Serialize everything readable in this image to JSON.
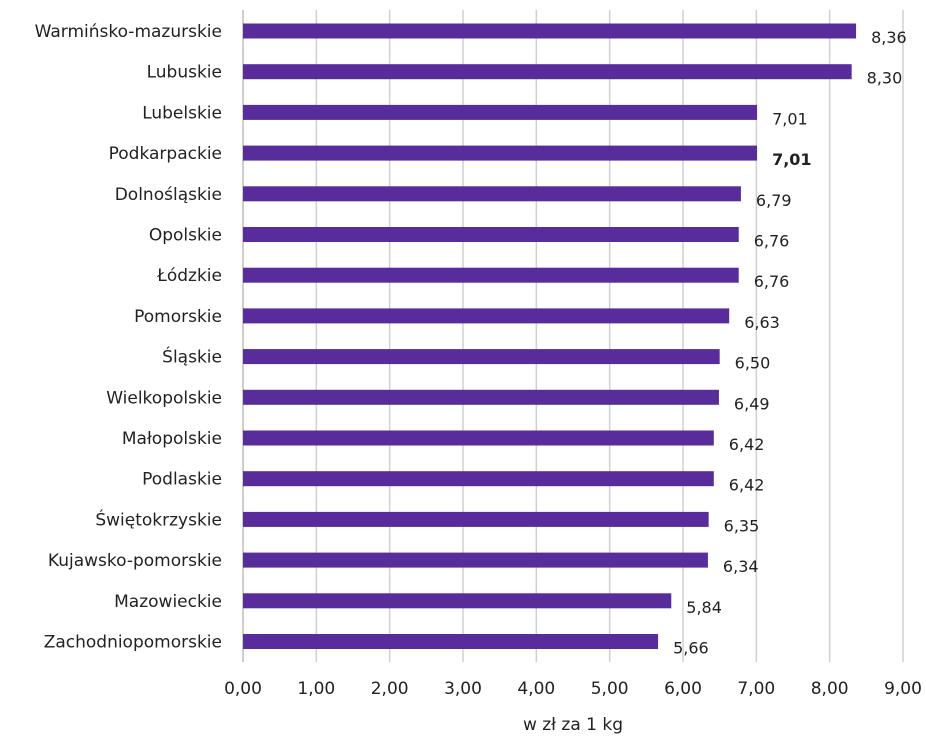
{
  "chart_data": {
    "type": "bar",
    "orientation": "horizontal",
    "categories": [
      "Warmińsko-mazurskie",
      "Lubuskie",
      "Lubelskie",
      "Podkarpackie",
      "Dolnośląskie",
      "Opolskie",
      "Łódzkie",
      "Pomorskie",
      "Śląskie",
      "Wielkopolskie",
      "Małopolskie",
      "Podlaskie",
      "Świętokrzyskie",
      "Kujawsko-pomorskie",
      "Mazowieckie",
      "Zachodniopomorskie"
    ],
    "values": [
      8.36,
      8.3,
      7.01,
      7.01,
      6.79,
      6.76,
      6.76,
      6.63,
      6.5,
      6.49,
      6.42,
      6.42,
      6.35,
      6.34,
      5.84,
      5.66
    ],
    "value_labels": [
      "8,36",
      "8,30",
      "7,01",
      "7,01",
      "6,79",
      "6,76",
      "6,76",
      "6,63",
      "6,50",
      "6,49",
      "6,42",
      "6,42",
      "6,35",
      "6,34",
      "5,84",
      "5,66"
    ],
    "highlighted_category": "Podkarpackie",
    "xlabel": "w zł za 1 kg",
    "xlim": [
      0,
      9
    ],
    "ticks": [
      0,
      1,
      2,
      3,
      4,
      5,
      6,
      7,
      8,
      9
    ],
    "tick_labels": [
      "0,00",
      "1,00",
      "2,00",
      "3,00",
      "4,00",
      "5,00",
      "6,00",
      "7,00",
      "8,00",
      "9,00"
    ],
    "grid": "vertical",
    "bar_color": "#582C9A"
  }
}
